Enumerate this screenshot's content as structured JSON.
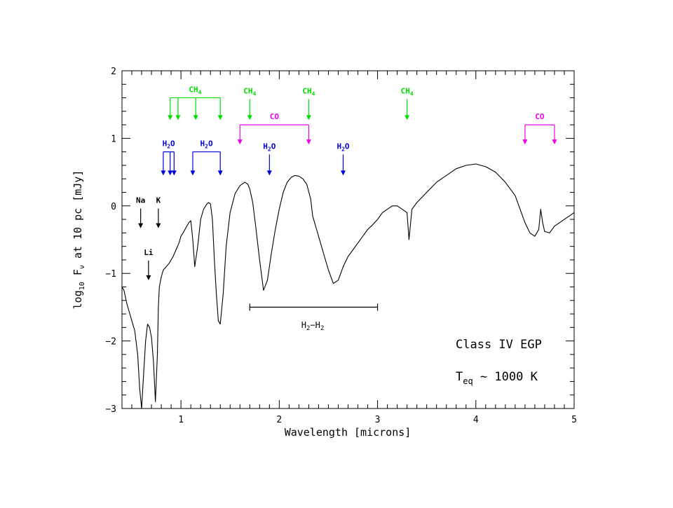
{
  "chart_data": {
    "type": "line",
    "xlabel": "Wavelength  [microns]",
    "ylabel": "log₁₀ Fν at 10 pc [mJy]",
    "ylabel_parts": {
      "pre": "log",
      "sub1": "10",
      "mid": " F",
      "sub2": "ν",
      "post": " at 10 pc [mJy]"
    },
    "xlim": [
      0.4,
      5.0
    ],
    "ylim": [
      -3,
      2
    ],
    "x_ticks": [
      1,
      2,
      3,
      4,
      5
    ],
    "x_tick_labels": [
      "1",
      "2",
      "3",
      "4",
      "5"
    ],
    "y_ticks": [
      -3,
      -2,
      -1,
      0,
      1,
      2
    ],
    "y_tick_labels": [
      "−3",
      "−2",
      "−1",
      "0",
      "1",
      "2"
    ],
    "grid": false,
    "series": [
      {
        "color": "#000000",
        "x": [
          0.4,
          0.42,
          0.45,
          0.48,
          0.5,
          0.53,
          0.56,
          0.58,
          0.6,
          0.62,
          0.64,
          0.66,
          0.68,
          0.7,
          0.72,
          0.74,
          0.76,
          0.77,
          0.78,
          0.8,
          0.82,
          0.85,
          0.88,
          0.9,
          0.92,
          0.95,
          0.98,
          1.0,
          1.03,
          1.06,
          1.08,
          1.1,
          1.12,
          1.14,
          1.17,
          1.2,
          1.23,
          1.26,
          1.28,
          1.3,
          1.32,
          1.34,
          1.36,
          1.38,
          1.4,
          1.43,
          1.46,
          1.5,
          1.55,
          1.6,
          1.65,
          1.68,
          1.7,
          1.73,
          1.76,
          1.8,
          1.84,
          1.88,
          1.92,
          1.96,
          2.0,
          2.04,
          2.08,
          2.12,
          2.16,
          2.2,
          2.24,
          2.28,
          2.32,
          2.34,
          2.38,
          2.42,
          2.46,
          2.5,
          2.55,
          2.6,
          2.65,
          2.7,
          2.75,
          2.8,
          2.85,
          2.9,
          2.95,
          3.0,
          3.05,
          3.1,
          3.15,
          3.2,
          3.25,
          3.3,
          3.31,
          3.32,
          3.35,
          3.4,
          3.5,
          3.6,
          3.7,
          3.8,
          3.9,
          4.0,
          4.1,
          4.2,
          4.3,
          4.4,
          4.5,
          4.55,
          4.6,
          4.64,
          4.66,
          4.68,
          4.7,
          4.75,
          4.8,
          4.85,
          4.9,
          4.95,
          5.0
        ],
        "y": [
          -1.2,
          -1.25,
          -1.45,
          -1.6,
          -1.7,
          -1.85,
          -2.2,
          -2.7,
          -3.0,
          -2.5,
          -2.0,
          -1.75,
          -1.8,
          -1.95,
          -2.3,
          -2.9,
          -2.2,
          -1.5,
          -1.2,
          -1.05,
          -0.95,
          -0.9,
          -0.85,
          -0.8,
          -0.75,
          -0.65,
          -0.55,
          -0.45,
          -0.38,
          -0.3,
          -0.25,
          -0.22,
          -0.5,
          -0.9,
          -0.6,
          -0.2,
          -0.05,
          0.02,
          0.05,
          0.03,
          -0.2,
          -0.8,
          -1.3,
          -1.7,
          -1.75,
          -1.3,
          -0.6,
          -0.1,
          0.18,
          0.3,
          0.35,
          0.32,
          0.25,
          0.05,
          -0.3,
          -0.8,
          -1.25,
          -1.1,
          -0.7,
          -0.35,
          -0.05,
          0.2,
          0.35,
          0.42,
          0.45,
          0.44,
          0.4,
          0.32,
          0.1,
          -0.15,
          -0.35,
          -0.55,
          -0.75,
          -0.95,
          -1.15,
          -1.1,
          -0.9,
          -0.75,
          -0.65,
          -0.55,
          -0.45,
          -0.35,
          -0.28,
          -0.2,
          -0.1,
          -0.05,
          0.0,
          0.0,
          -0.05,
          -0.1,
          -0.3,
          -0.5,
          -0.05,
          0.05,
          0.2,
          0.35,
          0.45,
          0.55,
          0.6,
          0.62,
          0.58,
          0.5,
          0.35,
          0.15,
          -0.25,
          -0.4,
          -0.45,
          -0.35,
          -0.05,
          -0.25,
          -0.38,
          -0.4,
          -0.3,
          -0.25,
          -0.2,
          -0.15,
          -0.1
        ]
      }
    ],
    "absorption_labels": [
      {
        "text": "CH",
        "sub": "4",
        "color": "#00dd00",
        "group_x": [
          0.89,
          0.97,
          1.15,
          1.4
        ],
        "bracket_y": 1.6,
        "arrow_to": 1.27
      },
      {
        "text": "CH",
        "sub": "4",
        "color": "#00dd00",
        "group_x": [
          1.7
        ],
        "arrow_to": 1.27
      },
      {
        "text": "CH",
        "sub": "4",
        "color": "#00dd00",
        "group_x": [
          2.3
        ],
        "arrow_to": 1.27
      },
      {
        "text": "CH",
        "sub": "4",
        "color": "#00dd00",
        "group_x": [
          3.3
        ],
        "arrow_to": 1.27
      },
      {
        "text": "CO",
        "sub": "",
        "color": "#ee00ee",
        "group_x": [
          1.6,
          2.3
        ],
        "bracket_y": 1.2,
        "arrow_to": 0.91
      },
      {
        "text": "CO",
        "sub": "",
        "color": "#ee00ee",
        "group_x": [
          4.5,
          4.8
        ],
        "bracket_y": 1.2,
        "arrow_to": 0.91
      },
      {
        "text": "H",
        "sub": "2",
        "post": "O",
        "color": "#0000dd",
        "group_x": [
          0.82,
          0.89,
          0.93
        ],
        "bracket_y": 0.8,
        "arrow_to": 0.45
      },
      {
        "text": "H",
        "sub": "2",
        "post": "O",
        "color": "#0000dd",
        "group_x": [
          1.12,
          1.4
        ],
        "bracket_y": 0.8,
        "arrow_to": 0.45
      },
      {
        "text": "H",
        "sub": "2",
        "post": "O",
        "color": "#0000dd",
        "group_x": [
          1.9
        ],
        "arrow_to": 0.45
      },
      {
        "text": "H",
        "sub": "2",
        "post": "O",
        "color": "#0000dd",
        "group_x": [
          2.65
        ],
        "arrow_to": 0.45
      },
      {
        "text": "Na",
        "sub": "",
        "color": "#000000",
        "group_x": [
          0.59
        ],
        "arrow_to": -0.33
      },
      {
        "text": "K",
        "sub": "",
        "color": "#000000",
        "group_x": [
          0.77
        ],
        "arrow_to": -0.33
      },
      {
        "text": "Li",
        "sub": "",
        "color": "#000000",
        "group_x": [
          0.67
        ],
        "arrow_to": -1.1
      }
    ],
    "h2_band": {
      "label": "H",
      "sub": "2",
      "mid": "−H",
      "sub2": "2",
      "x_range": [
        1.7,
        3.0
      ],
      "y": -1.5
    },
    "text_annotations": {
      "class_label": "Class IV EGP",
      "teq_pre": "T",
      "teq_sub": "eq",
      "teq_post": " ∼ 1000 K"
    }
  }
}
